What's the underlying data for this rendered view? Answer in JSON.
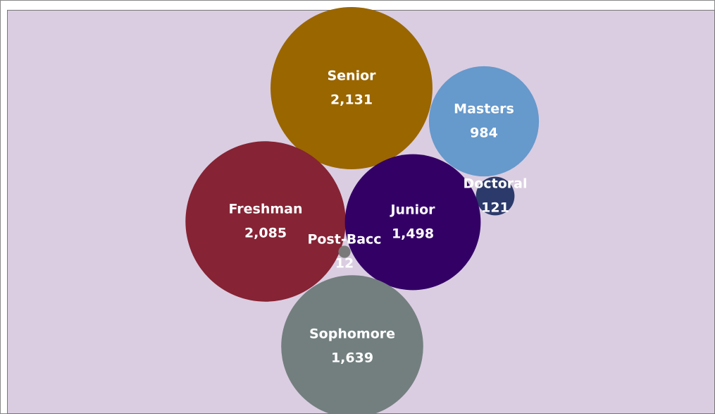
{
  "chart_data": {
    "type": "bubble",
    "categories": [
      "Senior",
      "Masters",
      "Doctoral",
      "Freshman",
      "Junior",
      "Post-Bacc",
      "Sophomore"
    ],
    "values": [
      2131,
      984,
      121,
      2085,
      1498,
      12,
      1639
    ],
    "value_labels": [
      "2,131",
      "984",
      "121",
      "2,085",
      "1,498",
      "12",
      "1,639"
    ],
    "colors": [
      "#9a6600",
      "#6699cc",
      "#2b3a6b",
      "#862334",
      "#330066",
      "#7a7a7a",
      "#737f7f"
    ]
  }
}
